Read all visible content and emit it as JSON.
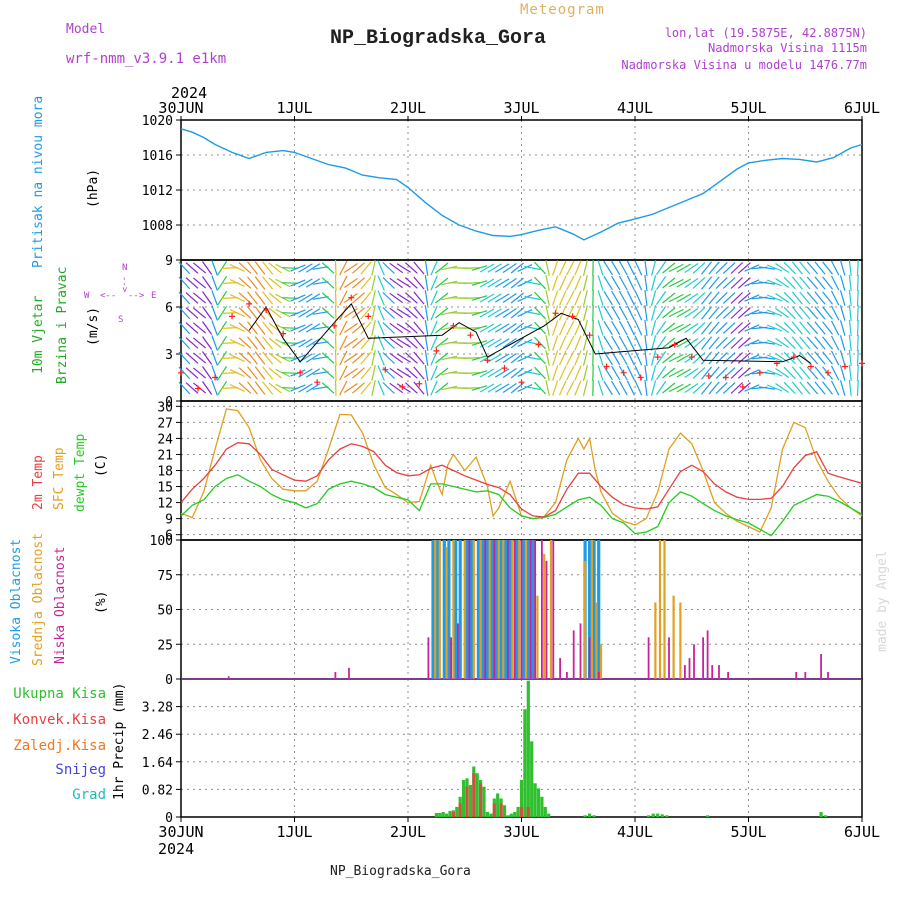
{
  "header": {
    "model_label": "Model",
    "model_value": "wrf-nmm_v3.9.1 e1km",
    "title": "NP_Biogradska_Gora",
    "meteogram": "Meteogram",
    "lonlat": "lon,lat (19.5875E, 42.8875N)",
    "elevation": "Nadmorska Visina 1115m",
    "model_elevation": "Nadmorska Visina u modelu 1476.77m",
    "year_top": "2024",
    "year_bottom": "2024",
    "footer_station": "NP_Biogradska_Gora",
    "credit": "made by Angel"
  },
  "colors": {
    "pressure": "#1e9be8",
    "wind_axis": "#22aa22",
    "temp2m": "#e84040",
    "sfc": "#e0a020",
    "dew": "#22cc22",
    "high_cloud": "#1e9be8",
    "mid_cloud": "#e0a020",
    "low_cloud": "#cc2299",
    "total_precip": "#2ec02e",
    "conv_precip": "#e84040",
    "frozen_precip": "#ee7722",
    "snow": "#4444dd",
    "hail": "#22bbbb",
    "purple": "#b040d0",
    "gust": "#000000",
    "wind_marker": "#ff2020"
  },
  "chart_data": [
    {
      "type": "line",
      "panel": "pressure",
      "ylabel": "Pritisak na nivou mora",
      "unit": "(hPa)",
      "categories": [
        "30JUN",
        "1JUL",
        "2JUL",
        "3JUL",
        "4JUL",
        "5JUL",
        "6JUL"
      ],
      "ylim": [
        1004,
        1020
      ],
      "yticks": [
        1008,
        1012,
        1016,
        1020
      ],
      "grid": true,
      "series": [
        {
          "key": "pressure",
          "x": [
            0,
            0.1,
            0.2,
            0.3,
            0.45,
            0.6,
            0.75,
            0.9,
            1.0,
            1.15,
            1.3,
            1.45,
            1.6,
            1.75,
            1.9,
            2.0,
            2.15,
            2.3,
            2.45,
            2.6,
            2.75,
            2.9,
            3.0,
            3.15,
            3.3,
            3.45,
            3.55,
            3.7,
            3.85,
            4.0,
            4.15,
            4.3,
            4.45,
            4.6,
            4.75,
            4.9,
            5.0,
            5.15,
            5.3,
            5.45,
            5.6,
            5.75,
            5.9,
            6.0
          ],
          "values": [
            1019.0,
            1018.6,
            1018.0,
            1017.2,
            1016.3,
            1015.6,
            1016.3,
            1016.5,
            1016.3,
            1015.6,
            1014.9,
            1014.5,
            1013.7,
            1013.4,
            1013.2,
            1012.3,
            1010.6,
            1009.1,
            1008.0,
            1007.3,
            1006.8,
            1006.7,
            1006.9,
            1007.4,
            1007.8,
            1007.0,
            1006.3,
            1007.2,
            1008.2,
            1008.7,
            1009.2,
            1010.0,
            1010.8,
            1011.6,
            1013.0,
            1014.4,
            1015.1,
            1015.4,
            1015.6,
            1015.5,
            1015.2,
            1015.7,
            1016.8,
            1017.2
          ]
        }
      ]
    },
    {
      "type": "line",
      "panel": "wind",
      "ylabel": "10m Vjetar",
      "ylabel2": "Brzina i Pravac",
      "unit": "(m/s)",
      "compass": {
        "n": "N",
        "w": "W",
        "e": "E",
        "s": "S",
        "arrow_w": "<--",
        "arrow_e": "-->"
      },
      "categories": [
        "30JUN",
        "1JUL",
        "2JUL",
        "3JUL",
        "4JUL",
        "5JUL",
        "6JUL"
      ],
      "ylim": [
        0,
        9
      ],
      "yticks": [
        0,
        3,
        6,
        9
      ],
      "grid": true,
      "series": [
        {
          "key": "speed",
          "x": [
            0,
            0.15,
            0.3,
            0.45,
            0.6,
            0.75,
            0.9,
            1.05,
            1.2,
            1.35,
            1.5,
            1.65,
            1.8,
            1.95,
            2.1,
            2.25,
            2.4,
            2.55,
            2.7,
            2.85,
            3.0,
            3.15,
            3.3,
            3.45,
            3.6,
            3.75,
            3.9,
            4.05,
            4.2,
            4.35,
            4.5,
            4.65,
            4.8,
            4.95,
            5.1,
            5.25,
            5.4,
            5.55,
            5.7,
            5.85,
            6.0
          ],
          "values": [
            1.8,
            0.8,
            1.5,
            5.4,
            6.2,
            5.8,
            4.3,
            1.8,
            1.2,
            4.8,
            6.6,
            5.4,
            2.0,
            0.9,
            1.1,
            3.2,
            4.8,
            4.2,
            2.6,
            2.1,
            1.2,
            3.6,
            5.6,
            5.4,
            4.2,
            2.2,
            1.8,
            1.5,
            2.8,
            3.6,
            2.8,
            1.6,
            1.5,
            0.9,
            1.8,
            2.4,
            2.8,
            2.2,
            1.8,
            2.2,
            2.4
          ]
        },
        {
          "key": "gust",
          "x": [
            0.6,
            0.75,
            0.9,
            1.05,
            1.35,
            1.5,
            1.65,
            2.3,
            2.45,
            2.6,
            2.7,
            3.2,
            3.35,
            3.5,
            3.65,
            4.3,
            4.45,
            4.6,
            5.3,
            5.45,
            5.55
          ],
          "values": [
            4.5,
            6.0,
            4.0,
            2.5,
            5.0,
            6.2,
            4.0,
            4.2,
            5.0,
            4.4,
            2.8,
            4.8,
            5.6,
            5.2,
            3.0,
            3.4,
            4.0,
            2.6,
            2.5,
            2.9,
            2.4
          ]
        }
      ]
    },
    {
      "type": "line",
      "panel": "temperature",
      "ylabel": "2m Temp",
      "ylabel2": "SFC Temp",
      "ylabel3": "dewpt Temp",
      "unit": "(C)",
      "categories": [
        "30JUN",
        "1JUL",
        "2JUL",
        "3JUL",
        "4JUL",
        "5JUL",
        "6JUL"
      ],
      "ylim": [
        5,
        31
      ],
      "yticks": [
        6,
        9,
        12,
        15,
        18,
        21,
        24,
        27,
        30
      ],
      "grid": true,
      "series": [
        {
          "key": "t2m",
          "x": [
            0,
            0.1,
            0.2,
            0.3,
            0.4,
            0.5,
            0.6,
            0.7,
            0.8,
            0.9,
            1.0,
            1.1,
            1.2,
            1.3,
            1.4,
            1.5,
            1.6,
            1.7,
            1.8,
            1.9,
            2.0,
            2.1,
            2.2,
            2.3,
            2.4,
            2.5,
            2.6,
            2.7,
            2.8,
            2.9,
            3.0,
            3.1,
            3.2,
            3.3,
            3.4,
            3.5,
            3.6,
            3.7,
            3.8,
            3.9,
            4.0,
            4.1,
            4.2,
            4.3,
            4.4,
            4.5,
            4.6,
            4.7,
            4.8,
            4.9,
            5.0,
            5.1,
            5.2,
            5.3,
            5.4,
            5.5,
            5.6,
            5.7,
            5.8,
            5.9,
            6.0
          ],
          "values": [
            12,
            14.5,
            16.5,
            19,
            22,
            23.2,
            23,
            21,
            18.2,
            17.2,
            16.2,
            16,
            17,
            20,
            22,
            23,
            22.5,
            21.5,
            19,
            17.6,
            17,
            17.2,
            18.4,
            19,
            18,
            17,
            16.2,
            15.4,
            14.8,
            13.5,
            10.8,
            9.5,
            9.3,
            10.5,
            14.5,
            17.5,
            17.5,
            15,
            13,
            11.6,
            11,
            10.8,
            11.2,
            14.5,
            17.8,
            19,
            17.8,
            15.5,
            14,
            13,
            12.6,
            12.6,
            12.8,
            15,
            18.5,
            20.8,
            21.5,
            17.5,
            16.8,
            16.2,
            15.6
          ]
        },
        {
          "key": "sfc",
          "x": [
            0,
            0.1,
            0.2,
            0.3,
            0.4,
            0.5,
            0.6,
            0.7,
            0.8,
            0.9,
            1.0,
            1.1,
            1.2,
            1.3,
            1.4,
            1.5,
            1.6,
            1.7,
            1.8,
            1.9,
            2.0,
            2.1,
            2.2,
            2.25,
            2.3,
            2.35,
            2.4,
            2.5,
            2.6,
            2.7,
            2.75,
            2.8,
            2.9,
            3.0,
            3.1,
            3.2,
            3.3,
            3.4,
            3.5,
            3.55,
            3.6,
            3.65,
            3.7,
            3.8,
            3.9,
            4.0,
            4.1,
            4.2,
            4.3,
            4.4,
            4.5,
            4.6,
            4.7,
            4.8,
            4.9,
            5.0,
            5.1,
            5.2,
            5.3,
            5.4,
            5.5,
            5.6,
            5.7,
            5.8,
            5.9,
            6.0
          ],
          "values": [
            10,
            9.2,
            14,
            22,
            29.5,
            29.2,
            26,
            20,
            16.5,
            14.5,
            14.2,
            14.2,
            16,
            22,
            28.5,
            28.4,
            25,
            19,
            14.8,
            13.5,
            12,
            12.2,
            19,
            16,
            13.5,
            19,
            21,
            18,
            20.5,
            15,
            9.5,
            11,
            16,
            9.5,
            9,
            9.4,
            12,
            20,
            24,
            22,
            24,
            18,
            14,
            10,
            8.5,
            7.8,
            9,
            14,
            22,
            25,
            23,
            18,
            12,
            10,
            8.5,
            7.5,
            6.5,
            11,
            22,
            27,
            26,
            20,
            16,
            13,
            11,
            9.5
          ]
        },
        {
          "key": "dew",
          "x": [
            0,
            0.1,
            0.2,
            0.3,
            0.4,
            0.5,
            0.6,
            0.7,
            0.8,
            0.9,
            1.0,
            1.1,
            1.2,
            1.3,
            1.4,
            1.5,
            1.6,
            1.7,
            1.8,
            1.9,
            2.0,
            2.1,
            2.2,
            2.3,
            2.4,
            2.5,
            2.6,
            2.7,
            2.8,
            2.9,
            3.0,
            3.1,
            3.2,
            3.3,
            3.4,
            3.5,
            3.6,
            3.7,
            3.8,
            3.9,
            4.0,
            4.1,
            4.2,
            4.3,
            4.4,
            4.5,
            4.6,
            4.7,
            4.8,
            4.9,
            5.0,
            5.1,
            5.2,
            5.3,
            5.4,
            5.5,
            5.6,
            5.7,
            5.8,
            5.9,
            6.0
          ],
          "values": [
            9.5,
            11.5,
            12.5,
            15,
            16.5,
            17.2,
            16,
            15,
            13.5,
            12.5,
            12,
            11,
            11.8,
            14.5,
            15.5,
            16,
            15.5,
            14.8,
            13.5,
            13,
            12.5,
            10.5,
            15.5,
            15.5,
            15,
            14.5,
            14,
            14.2,
            13.5,
            11,
            9.5,
            9,
            9.2,
            9.8,
            11.2,
            12.5,
            13,
            11.5,
            9,
            8.2,
            6.2,
            6.5,
            7.5,
            12,
            14,
            13.2,
            11.8,
            10.5,
            9.5,
            8.8,
            8.2,
            7,
            5.8,
            8.5,
            11.5,
            12.5,
            13.5,
            13.2,
            12.2,
            11,
            9.8
          ]
        }
      ]
    },
    {
      "type": "bar",
      "panel": "clouds",
      "ylabel": "Visoka Oblacnost",
      "ylabel2": "Srednja Oblacnost",
      "ylabel3": "Niska Oblacnost",
      "unit": "(%)",
      "categories": [
        "30JUN",
        "1JUL",
        "2JUL",
        "3JUL",
        "4JUL",
        "5JUL",
        "6JUL"
      ],
      "ylim": [
        0,
        100
      ],
      "yticks": [
        0,
        25,
        50,
        75,
        100
      ],
      "grid": true,
      "series": [
        {
          "key": "high",
          "x": [
            2.22,
            2.26,
            2.32,
            2.36,
            2.42,
            2.46,
            2.52,
            2.56,
            2.62,
            2.66,
            2.7,
            2.74,
            2.78,
            2.82,
            2.86,
            2.9,
            2.96,
            3.02,
            3.06,
            3.1,
            3.56,
            3.6,
            3.64,
            3.68
          ],
          "values": [
            100,
            100,
            100,
            100,
            100,
            100,
            100,
            100,
            100,
            100,
            100,
            100,
            100,
            100,
            100,
            100,
            100,
            100,
            100,
            100,
            100,
            100,
            100,
            100
          ]
        },
        {
          "key": "mid",
          "x": [
            2.24,
            2.28,
            2.34,
            2.4,
            2.5,
            2.58,
            2.64,
            2.72,
            2.8,
            2.84,
            2.92,
            2.98,
            3.04,
            3.14,
            3.2,
            3.26,
            3.56,
            3.62,
            3.66,
            3.7,
            4.18,
            4.22,
            4.26,
            4.34,
            4.4
          ],
          "values": [
            100,
            100,
            95,
            100,
            100,
            100,
            100,
            100,
            100,
            100,
            100,
            100,
            100,
            60,
            90,
            100,
            85,
            100,
            55,
            25,
            55,
            100,
            100,
            60,
            55
          ]
        },
        {
          "key": "low",
          "x": [
            0.42,
            1.36,
            1.48,
            2.18,
            2.38,
            2.44,
            2.54,
            2.68,
            2.76,
            2.88,
            2.94,
            3.0,
            3.08,
            3.12,
            3.18,
            3.22,
            3.28,
            3.34,
            3.4,
            3.46,
            3.52,
            3.6,
            3.68,
            4.12,
            4.3,
            4.44,
            4.48,
            4.52,
            4.6,
            4.64,
            4.68,
            4.74,
            4.82,
            5.42,
            5.5,
            5.64,
            5.7
          ],
          "values": [
            2,
            5,
            8,
            30,
            30,
            40,
            100,
            100,
            100,
            100,
            100,
            100,
            100,
            100,
            100,
            85,
            100,
            15,
            5,
            35,
            40,
            30,
            5,
            30,
            30,
            10,
            15,
            25,
            30,
            35,
            10,
            10,
            5,
            5,
            5,
            18,
            5
          ]
        }
      ]
    },
    {
      "type": "bar",
      "panel": "precip",
      "legend": [
        "Ukupna Kisa",
        "Konvek.Kisa",
        "Zaledj.Kisa",
        "Snijeg",
        "Grad"
      ],
      "ylabel": "1hr Precip (mm)",
      "categories": [
        "30JUN",
        "1JUL",
        "2JUL",
        "3JUL",
        "4JUL",
        "5JUL",
        "6JUL"
      ],
      "ylim": [
        0,
        4.1
      ],
      "yticks": [
        0,
        0.82,
        1.64,
        2.46,
        3.28
      ],
      "grid": true,
      "series": [
        {
          "key": "total",
          "x": [
            2.25,
            2.28,
            2.31,
            2.34,
            2.37,
            2.4,
            2.43,
            2.46,
            2.49,
            2.52,
            2.55,
            2.58,
            2.61,
            2.64,
            2.67,
            2.7,
            2.73,
            2.76,
            2.79,
            2.82,
            2.85,
            2.88,
            2.91,
            2.94,
            2.97,
            3.0,
            3.03,
            3.06,
            3.09,
            3.12,
            3.15,
            3.18,
            3.21,
            3.24,
            3.56,
            3.6,
            3.64,
            4.12,
            4.16,
            4.2,
            4.24,
            4.28,
            4.64,
            5.64,
            5.68
          ],
          "values": [
            0.12,
            0.12,
            0.15,
            0.1,
            0.18,
            0.2,
            0.3,
            0.6,
            1.1,
            1.15,
            0.95,
            1.5,
            1.3,
            1.1,
            0.9,
            0.15,
            0.1,
            0.55,
            0.7,
            0.55,
            0.35,
            0.05,
            0.1,
            0.15,
            0.3,
            1.1,
            3.2,
            4.05,
            2.25,
            1.0,
            0.85,
            0.6,
            0.3,
            0.1,
            0.05,
            0.1,
            0.05,
            0.05,
            0.1,
            0.1,
            0.08,
            0.05,
            0.05,
            0.15,
            0.05
          ]
        },
        {
          "key": "conv",
          "x": [
            2.4,
            2.46,
            2.52,
            2.58,
            2.64,
            2.76,
            2.82,
            3.0,
            3.06
          ],
          "values": [
            0.15,
            0.4,
            0.9,
            1.3,
            1.0,
            0.4,
            0.4,
            0.3,
            0.3
          ]
        }
      ]
    }
  ]
}
